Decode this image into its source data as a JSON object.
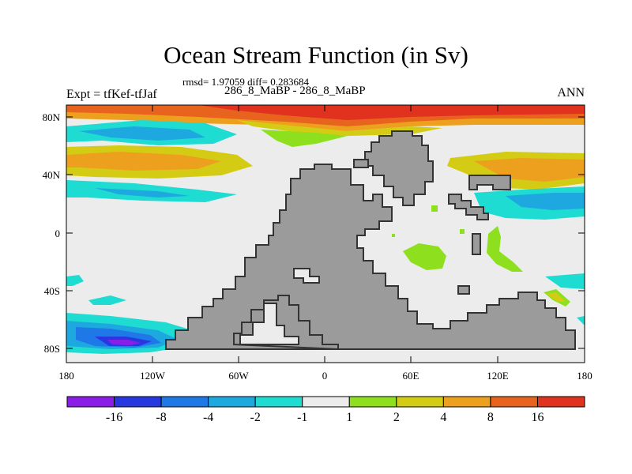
{
  "header": {
    "title": "Ocean Stream Function (in Sv)",
    "stats": "rmsd= 1.97059 diff= 0.283684",
    "subtitle": "286_8_MaBP - 286_8_MaBP",
    "left_label": "Expt = tfKef-tfJaf",
    "right_label": "ANN"
  },
  "axes": {
    "y_ticks": [
      "80N",
      "40N",
      "0",
      "40S",
      "80S"
    ],
    "x_ticks": [
      "180",
      "120W",
      "60W",
      "0",
      "60E",
      "120E",
      "180"
    ]
  },
  "colorbar": {
    "labels": [
      "-16",
      "-8",
      "-4",
      "-2",
      "-1",
      "1",
      "2",
      "4",
      "8",
      "16"
    ],
    "colors": [
      "#8a1ee8",
      "#2838e0",
      "#1e78e8",
      "#1ea8e0",
      "#1edcd2",
      "#ececec",
      "#8ee01e",
      "#d4cc14",
      "#eca01e",
      "#e8641e",
      "#e0321e"
    ]
  },
  "colors": {
    "land": "#9b9b9b",
    "coast": "#333333",
    "ocean_neutral": "#ececec"
  }
}
